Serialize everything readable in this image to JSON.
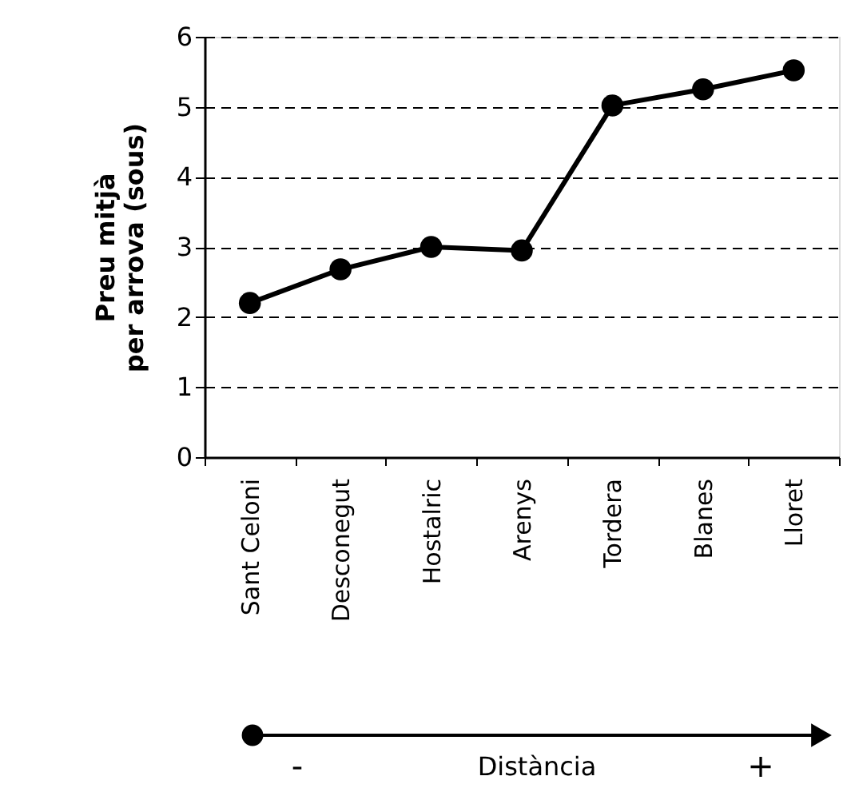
{
  "chart_data": {
    "type": "line",
    "ylabel": "Preu mitjà\nper arrova (sous)",
    "categories": [
      "Sant Celoni",
      "Desconegut",
      "Hostalric",
      "Arenys",
      "Tordera",
      "Blanes",
      "Lloret"
    ],
    "series": [
      {
        "color": "#000000",
        "values": [
          2.2,
          2.68,
          3.0,
          2.95,
          5.02,
          5.25,
          5.52
        ]
      }
    ],
    "ylim": [
      0,
      6
    ],
    "yticks": [
      0,
      1,
      2,
      3,
      4,
      5,
      6
    ],
    "grid": "y",
    "marker": "circle",
    "line_style": "solid",
    "annotations": [
      "-",
      "Distància",
      "+"
    ]
  }
}
